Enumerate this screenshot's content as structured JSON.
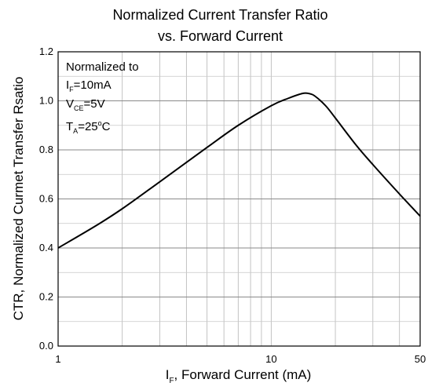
{
  "chart_data": {
    "type": "line",
    "title_line1": "Normalized Current Transfer Ratio",
    "title_line2": "vs. Forward Current",
    "xlabel_main": "I",
    "xlabel_sub": "F",
    "xlabel_rest": ", Forward Current (mA)",
    "ylabel": "CTR, Normalized Curmet Transfer Rsatio",
    "x_scale": "log",
    "xlim": [
      1,
      50
    ],
    "ylim": [
      0,
      1.2
    ],
    "x_ticks": [
      1,
      10,
      50
    ],
    "x_tick_labels": [
      "1",
      "10",
      "50"
    ],
    "y_ticks": [
      0.0,
      0.2,
      0.4,
      0.6,
      0.8,
      1.0,
      1.2
    ],
    "y_tick_labels": [
      "0.0",
      "0.2",
      "0.4",
      "0.6",
      "0.8",
      "1.0",
      "1.2"
    ],
    "grid": true,
    "annotation": {
      "line1": "Normalized to",
      "line2_main": "I",
      "line2_sub": "F",
      "line2_rest": "=10mA",
      "line3_main": "V",
      "line3_sub": "CE",
      "line3_rest": "=5V",
      "line4_main": "T",
      "line4_sub": "A",
      "line4_mid": "=25",
      "line4_sup": "o",
      "line4_rest": "C"
    },
    "series": [
      {
        "x": [
          1,
          1.5,
          2,
          3,
          5,
          7,
          10,
          12,
          14,
          15,
          16,
          18,
          20,
          25,
          30,
          40,
          50
        ],
        "y": [
          0.4,
          0.49,
          0.56,
          0.67,
          0.81,
          0.9,
          0.98,
          1.01,
          1.03,
          1.03,
          1.02,
          0.98,
          0.93,
          0.82,
          0.74,
          0.62,
          0.53
        ]
      }
    ]
  }
}
